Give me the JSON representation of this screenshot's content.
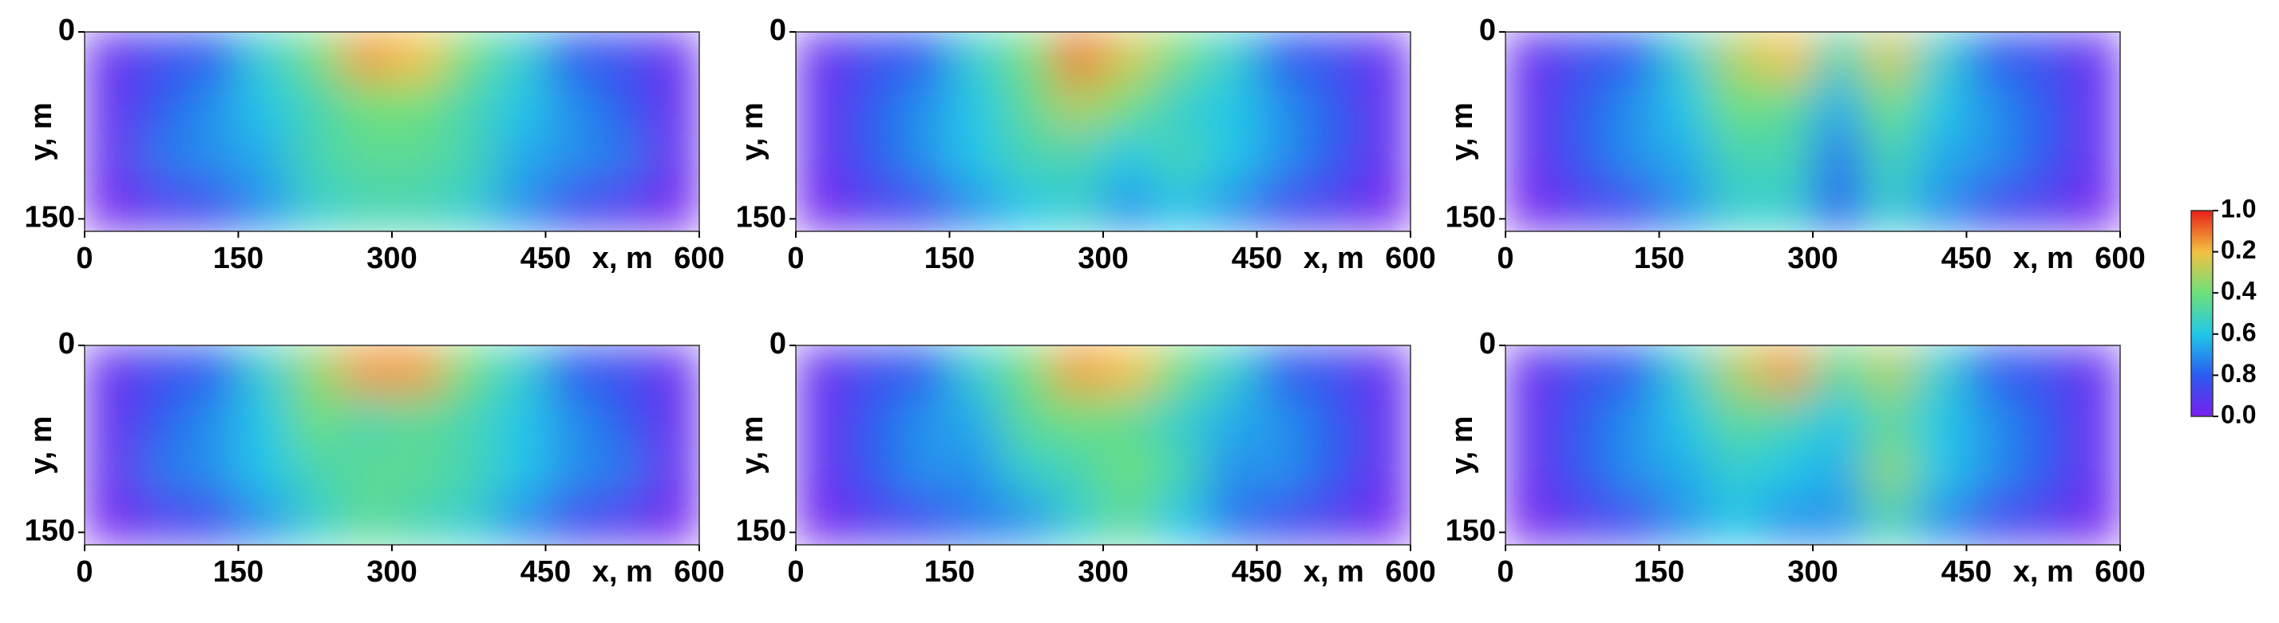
{
  "chart_data": [
    {
      "type": "heatmap",
      "xlabel": "x, m",
      "ylabel": "y, m",
      "xlim": [
        0,
        600
      ],
      "ylim": [
        0,
        160
      ],
      "xticks": [
        0,
        150,
        300,
        450,
        600
      ],
      "yticks": [
        0,
        150
      ],
      "z": [
        [
          0.05,
          0.15,
          0.2,
          0.45,
          0.6,
          0.85,
          0.8,
          0.6,
          0.45,
          0.2,
          0.15,
          0.05
        ],
        [
          0.05,
          0.2,
          0.3,
          0.4,
          0.5,
          0.6,
          0.6,
          0.5,
          0.4,
          0.3,
          0.2,
          0.05
        ],
        [
          0.05,
          0.25,
          0.3,
          0.35,
          0.5,
          0.55,
          0.55,
          0.5,
          0.35,
          0.3,
          0.25,
          0.05
        ],
        [
          0.02,
          0.1,
          0.15,
          0.3,
          0.45,
          0.5,
          0.5,
          0.45,
          0.3,
          0.15,
          0.1,
          0.02
        ]
      ]
    },
    {
      "type": "heatmap",
      "xlabel": "x, m",
      "ylabel": "y, m",
      "xlim": [
        0,
        600
      ],
      "ylim": [
        0,
        160
      ],
      "xticks": [
        0,
        150,
        300,
        450,
        600
      ],
      "yticks": [
        0,
        150
      ],
      "z": [
        [
          0.05,
          0.15,
          0.2,
          0.45,
          0.6,
          0.9,
          0.75,
          0.6,
          0.45,
          0.2,
          0.15,
          0.05
        ],
        [
          0.05,
          0.2,
          0.3,
          0.4,
          0.55,
          0.7,
          0.6,
          0.45,
          0.4,
          0.3,
          0.2,
          0.05
        ],
        [
          0.05,
          0.2,
          0.3,
          0.4,
          0.5,
          0.5,
          0.4,
          0.5,
          0.4,
          0.3,
          0.2,
          0.05
        ],
        [
          0.02,
          0.1,
          0.15,
          0.3,
          0.4,
          0.45,
          0.3,
          0.4,
          0.3,
          0.15,
          0.1,
          0.02
        ]
      ]
    },
    {
      "type": "heatmap",
      "xlabel": "x, m",
      "ylabel": "y, m",
      "xlim": [
        0,
        600
      ],
      "ylim": [
        0,
        160
      ],
      "xticks": [
        0,
        150,
        300,
        450,
        600
      ],
      "yticks": [
        0,
        150
      ],
      "z": [
        [
          0.05,
          0.15,
          0.2,
          0.45,
          0.7,
          0.8,
          0.5,
          0.75,
          0.45,
          0.2,
          0.15,
          0.05
        ],
        [
          0.05,
          0.2,
          0.3,
          0.4,
          0.6,
          0.55,
          0.35,
          0.6,
          0.4,
          0.3,
          0.2,
          0.05
        ],
        [
          0.05,
          0.2,
          0.3,
          0.35,
          0.5,
          0.5,
          0.25,
          0.5,
          0.35,
          0.3,
          0.2,
          0.05
        ],
        [
          0.02,
          0.1,
          0.15,
          0.3,
          0.45,
          0.45,
          0.2,
          0.45,
          0.3,
          0.15,
          0.1,
          0.02
        ]
      ]
    },
    {
      "type": "heatmap",
      "xlabel": "x, m",
      "ylabel": "y, m",
      "xlim": [
        0,
        600
      ],
      "ylim": [
        0,
        160
      ],
      "xticks": [
        0,
        150,
        300,
        450,
        600
      ],
      "yticks": [
        0,
        150
      ],
      "z": [
        [
          0.05,
          0.15,
          0.2,
          0.45,
          0.65,
          0.85,
          0.85,
          0.6,
          0.45,
          0.2,
          0.15,
          0.05
        ],
        [
          0.05,
          0.2,
          0.3,
          0.4,
          0.6,
          0.5,
          0.55,
          0.5,
          0.4,
          0.3,
          0.2,
          0.05
        ],
        [
          0.05,
          0.25,
          0.3,
          0.4,
          0.5,
          0.55,
          0.55,
          0.5,
          0.4,
          0.3,
          0.25,
          0.05
        ],
        [
          0.02,
          0.1,
          0.15,
          0.3,
          0.45,
          0.55,
          0.5,
          0.45,
          0.3,
          0.15,
          0.1,
          0.02
        ]
      ]
    },
    {
      "type": "heatmap",
      "xlabel": "x, m",
      "ylabel": "y, m",
      "xlim": [
        0,
        600
      ],
      "ylim": [
        0,
        160
      ],
      "xticks": [
        0,
        150,
        300,
        450,
        600
      ],
      "yticks": [
        0,
        150
      ],
      "z": [
        [
          0.05,
          0.15,
          0.2,
          0.45,
          0.6,
          0.85,
          0.8,
          0.6,
          0.45,
          0.2,
          0.15,
          0.05
        ],
        [
          0.05,
          0.2,
          0.3,
          0.35,
          0.55,
          0.6,
          0.55,
          0.45,
          0.35,
          0.3,
          0.2,
          0.05
        ],
        [
          0.05,
          0.2,
          0.3,
          0.3,
          0.45,
          0.5,
          0.6,
          0.5,
          0.3,
          0.3,
          0.2,
          0.05
        ],
        [
          0.02,
          0.1,
          0.15,
          0.25,
          0.3,
          0.45,
          0.55,
          0.4,
          0.25,
          0.15,
          0.1,
          0.02
        ]
      ]
    },
    {
      "type": "heatmap",
      "xlabel": "x, m",
      "ylabel": "y, m",
      "xlim": [
        0,
        600
      ],
      "ylim": [
        0,
        160
      ],
      "xticks": [
        0,
        150,
        300,
        450,
        600
      ],
      "yticks": [
        0,
        150
      ],
      "z": [
        [
          0.05,
          0.15,
          0.2,
          0.45,
          0.7,
          0.85,
          0.55,
          0.7,
          0.45,
          0.2,
          0.15,
          0.05
        ],
        [
          0.05,
          0.2,
          0.3,
          0.4,
          0.55,
          0.5,
          0.4,
          0.55,
          0.4,
          0.3,
          0.2,
          0.05
        ],
        [
          0.05,
          0.2,
          0.3,
          0.35,
          0.45,
          0.4,
          0.35,
          0.65,
          0.4,
          0.3,
          0.2,
          0.05
        ],
        [
          0.02,
          0.1,
          0.15,
          0.3,
          0.4,
          0.3,
          0.3,
          0.5,
          0.3,
          0.15,
          0.1,
          0.02
        ]
      ]
    }
  ],
  "colorbar": {
    "zlim": [
      0,
      1
    ],
    "ticks": [
      {
        "value": 1,
        "label": "1.0"
      },
      0.2,
      0.4,
      0.6,
      0.8,
      {
        "value": 0,
        "label": "0.0"
      }
    ]
  }
}
